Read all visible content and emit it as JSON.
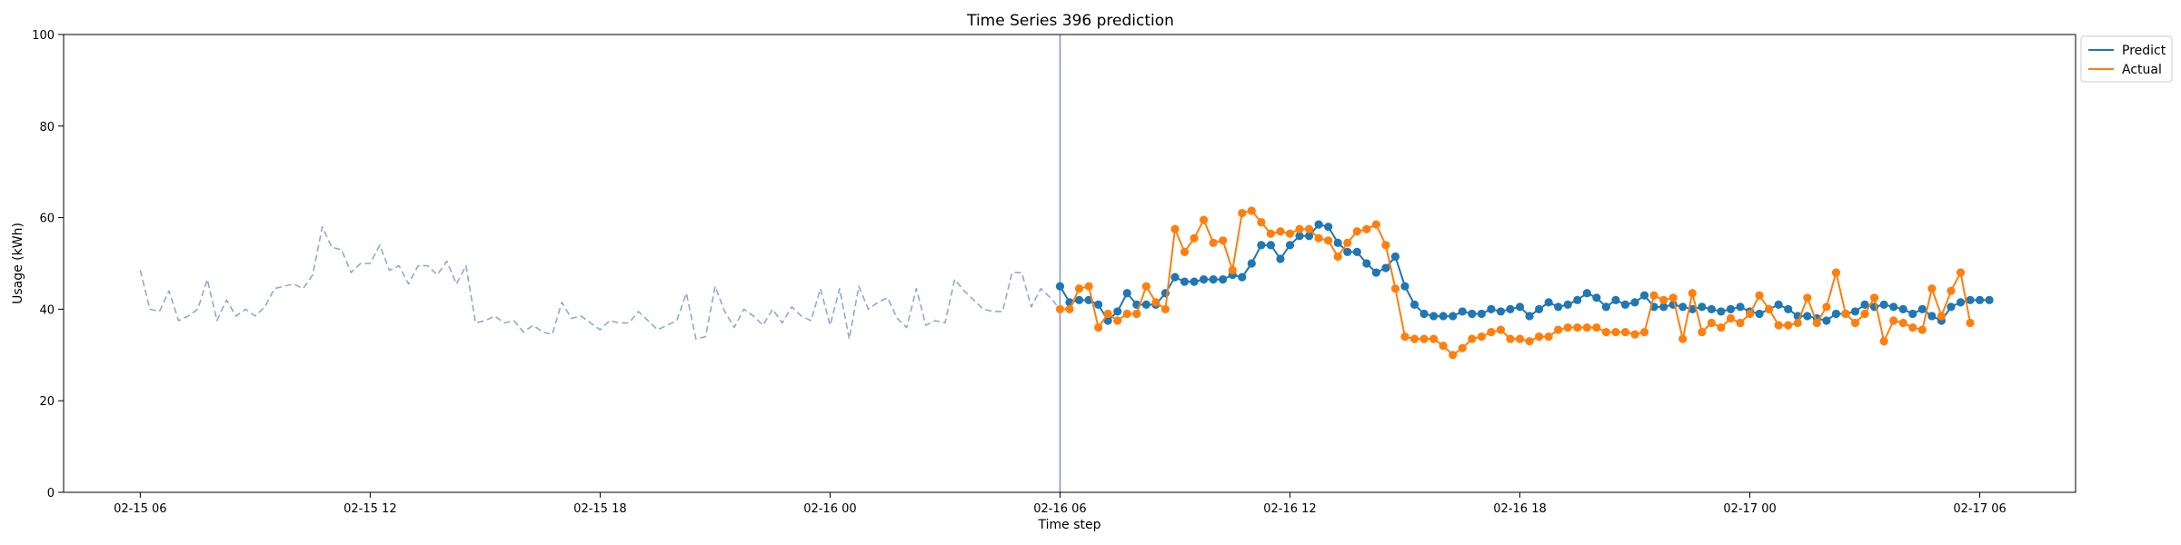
{
  "chart_data": {
    "type": "line",
    "title": "Time Series 396 prediction",
    "xlabel": "Time step",
    "ylabel": "Usage (kWh)",
    "ylim": [
      0,
      100
    ],
    "xlim": [
      "02-15 04:00",
      "02-17 08:30"
    ],
    "yticks": [
      "0",
      "20",
      "40",
      "60",
      "80",
      "100"
    ],
    "yticks_values": [
      0,
      20,
      40,
      60,
      80,
      100
    ],
    "xticks": [
      "02-15 06",
      "02-15 12",
      "02-15 18",
      "02-16 00",
      "02-16 06",
      "02-16 12",
      "02-16 18",
      "02-17 00",
      "02-17 06"
    ],
    "xticks_values": [
      "02-15 06:00",
      "02-15 12:00",
      "02-15 18:00",
      "02-16 00:00",
      "02-16 06:00",
      "02-16 12:00",
      "02-16 18:00",
      "02-17 00:00",
      "02-17 06:00"
    ],
    "grid": false,
    "legend_placement": "outside top-right",
    "forecast_start": "02-16 06:00",
    "series": [
      {
        "name": "history",
        "style": "dashed",
        "color": "#8faad1",
        "x_start": "02-15 06:00",
        "step_minutes": 15,
        "values": [
          48.5,
          40.0,
          39.5,
          44.0,
          37.5,
          38.5,
          40.0,
          46.5,
          37.5,
          42.0,
          38.5,
          40.0,
          38.5,
          40.5,
          44.5,
          45.0,
          45.5,
          44.5,
          47.5,
          58.0,
          53.5,
          53.0,
          48.0,
          50.0,
          50.0,
          54.0,
          48.5,
          49.5,
          45.5,
          49.5,
          49.5,
          47.5,
          50.5,
          45.5,
          49.5,
          37.0,
          37.5,
          38.5,
          37.0,
          37.5,
          35.0,
          36.5,
          35.0,
          34.5,
          41.5,
          38.0,
          38.5,
          37.0,
          35.5,
          37.5,
          37.0,
          37.0,
          39.5,
          37.5,
          35.5,
          36.5,
          37.5,
          43.5,
          33.5,
          34.0,
          45.0,
          39.5,
          36.0,
          40.0,
          38.5,
          36.5,
          40.0,
          37.0,
          40.5,
          38.5,
          37.5,
          44.5,
          36.5,
          44.5,
          33.5,
          45.0,
          40.0,
          41.5,
          42.5,
          38.0,
          36.0,
          44.5,
          36.5,
          37.5,
          37.0,
          46.5,
          44.0,
          42.0,
          40.0,
          39.5,
          39.5,
          48.0,
          48.0,
          40.5,
          44.5,
          42.5,
          40.0
        ]
      },
      {
        "name": "Predict",
        "style": "solid-marker",
        "color": "#1f77b4",
        "x_start": "02-16 06:00",
        "step_minutes": 15,
        "values": [
          45.0,
          41.5,
          42.0,
          42.0,
          41.0,
          37.5,
          39.5,
          43.5,
          41.0,
          41.0,
          41.0,
          43.5,
          47.0,
          46.0,
          46.0,
          46.5,
          46.5,
          46.5,
          47.5,
          47.0,
          50.0,
          54.0,
          54.0,
          51.0,
          54.0,
          56.0,
          56.0,
          58.5,
          58.0,
          54.5,
          52.5,
          52.5,
          50.0,
          48.0,
          49.0,
          51.5,
          45.0,
          41.0,
          39.0,
          38.5,
          38.5,
          38.5,
          39.5,
          39.0,
          39.0,
          40.0,
          39.5,
          40.0,
          40.5,
          38.5,
          40.0,
          41.5,
          40.5,
          41.0,
          42.0,
          43.5,
          42.5,
          40.5,
          42.0,
          41.0,
          41.5,
          43.0,
          40.5,
          40.5,
          41.0,
          40.5,
          40.0,
          40.5,
          40.0,
          39.5,
          40.0,
          40.5,
          39.5,
          39.0,
          40.0,
          41.0,
          40.0,
          38.5,
          38.5,
          38.0,
          37.5,
          39.0,
          39.0,
          39.5,
          41.0,
          40.5,
          41.0,
          40.5,
          40.0,
          39.0,
          40.0,
          38.5,
          37.5,
          40.5,
          41.5,
          42.0,
          42.0,
          42.0
        ]
      },
      {
        "name": "Actual",
        "style": "solid-marker",
        "color": "#ff7f0e",
        "x_start": "02-16 06:00",
        "step_minutes": 15,
        "values": [
          40.0,
          40.0,
          44.5,
          45.0,
          36.0,
          39.0,
          37.5,
          39.0,
          39.0,
          45.0,
          41.5,
          40.0,
          57.5,
          52.5,
          55.5,
          59.5,
          54.5,
          55.0,
          48.5,
          61.0,
          61.5,
          59.0,
          56.5,
          57.0,
          56.5,
          57.5,
          57.5,
          55.5,
          55.0,
          51.5,
          54.5,
          57.0,
          57.5,
          58.5,
          54.0,
          44.5,
          34.0,
          33.5,
          33.5,
          33.5,
          32.0,
          30.0,
          31.5,
          33.5,
          34.0,
          35.0,
          35.5,
          33.5,
          33.5,
          33.0,
          34.0,
          34.0,
          35.5,
          36.0,
          36.0,
          36.0,
          36.0,
          35.0,
          35.0,
          35.0,
          34.5,
          35.0,
          43.0,
          42.0,
          42.5,
          33.5,
          43.5,
          35.0,
          37.0,
          36.0,
          38.0,
          37.0,
          39.0,
          43.0,
          40.0,
          36.5,
          36.5,
          37.0,
          42.5,
          37.0,
          40.5,
          48.0,
          39.0,
          37.0,
          39.0,
          42.5,
          33.0,
          37.5,
          37.0,
          36.0,
          35.5,
          44.5,
          38.5,
          44.0,
          48.0,
          37.0
        ]
      }
    ]
  }
}
